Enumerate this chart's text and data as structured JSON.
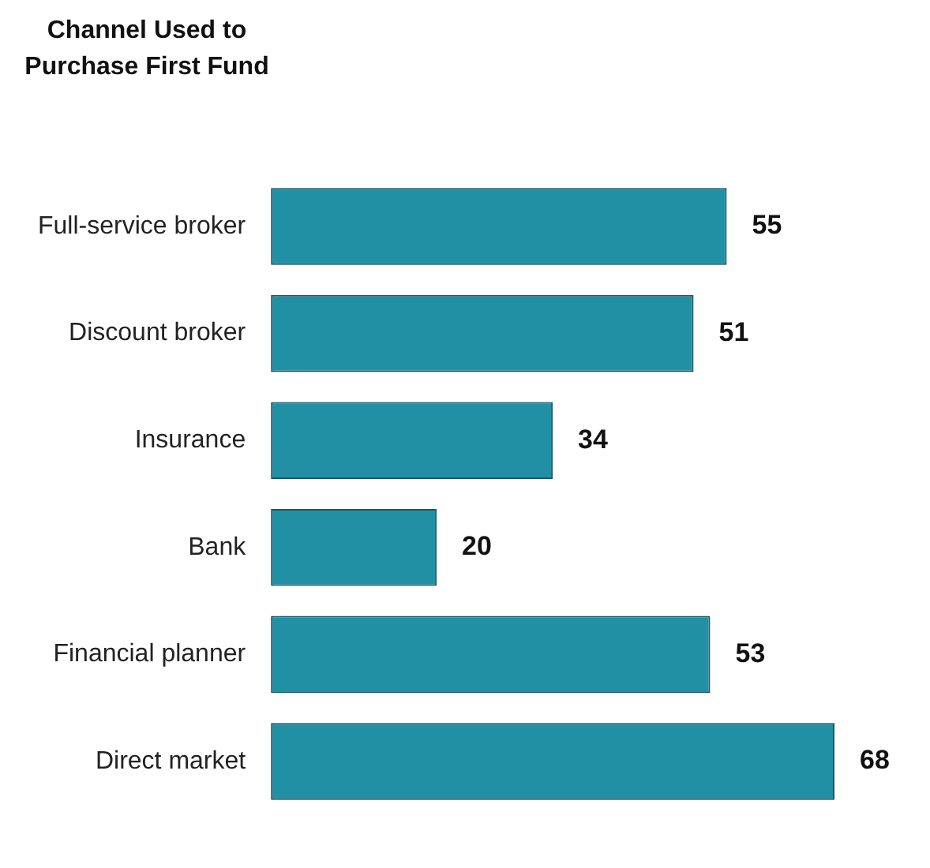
{
  "chart_data": {
    "type": "bar",
    "orientation": "horizontal",
    "title": "Channel Used to Purchase First Fund",
    "categories": [
      "Full-service broker",
      "Discount broker",
      "Insurance",
      "Bank",
      "Financial planner",
      "Direct market"
    ],
    "values": [
      55,
      51,
      34,
      20,
      53,
      68
    ],
    "color": "#2290a4",
    "data_labels": true,
    "legend": false
  }
}
